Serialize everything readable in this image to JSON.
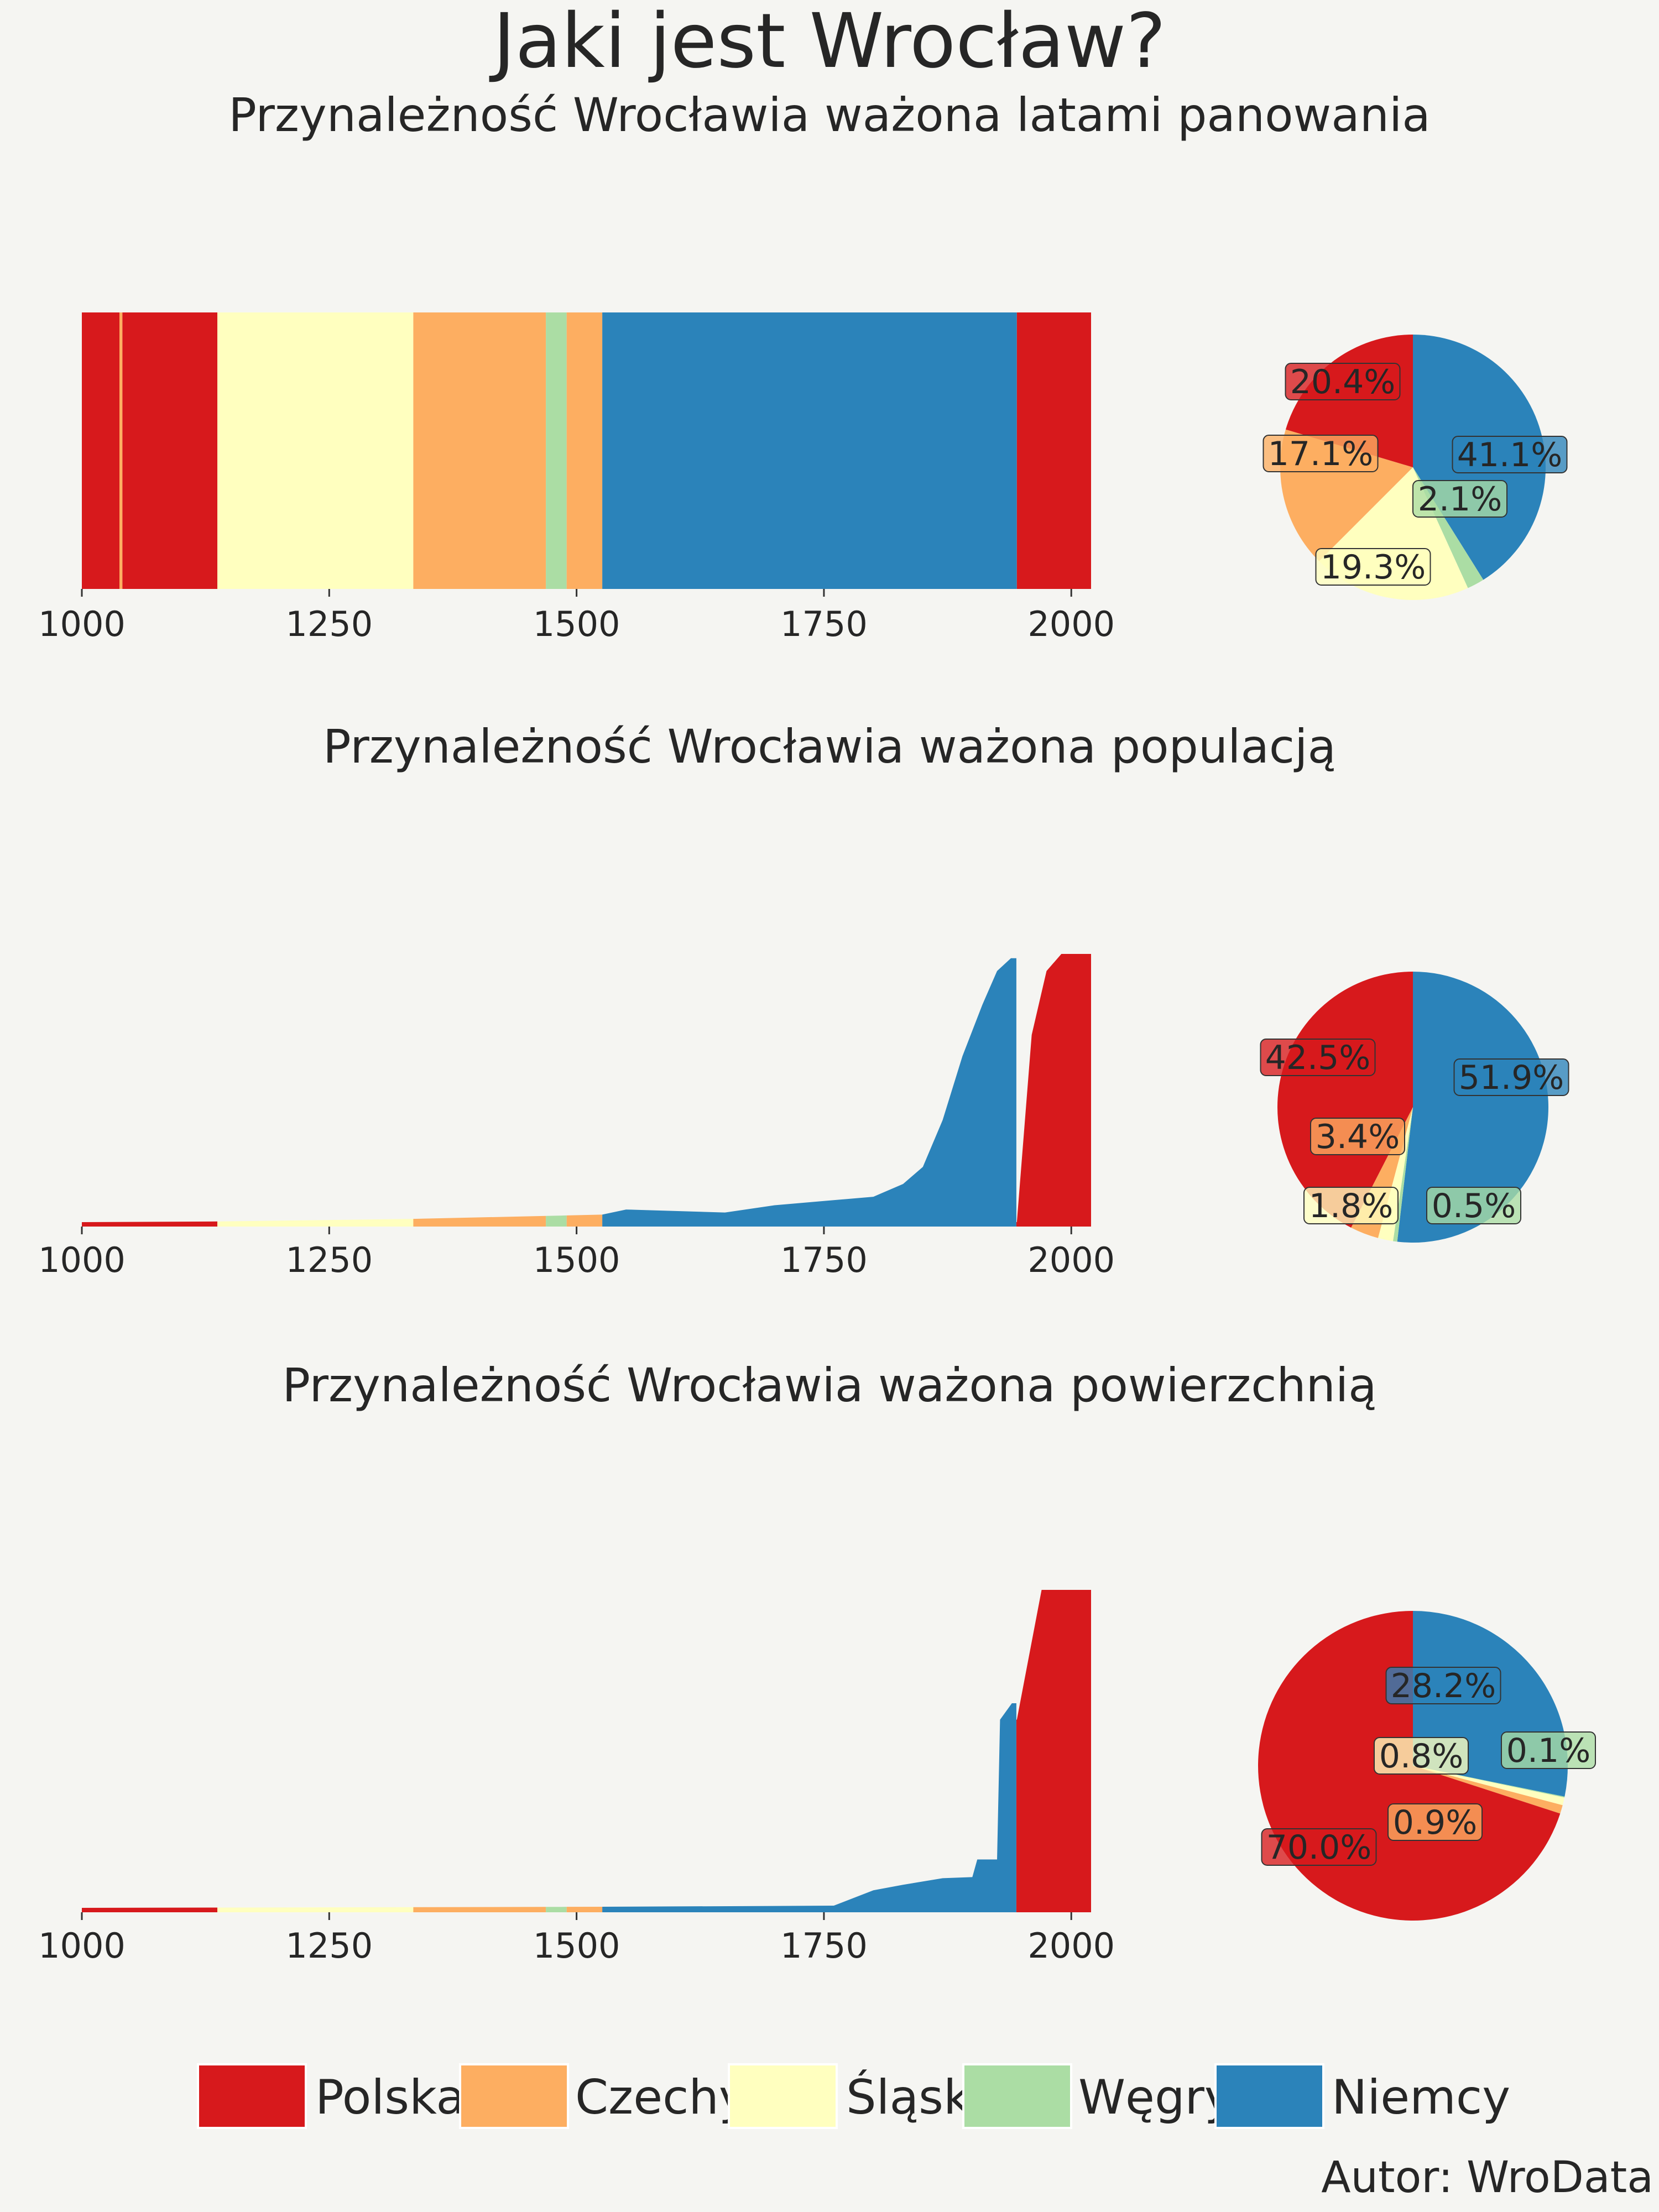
{
  "title": "Jaki jest Wrocław?",
  "author": "Autor: WroData",
  "legend": [
    {
      "key": "PL",
      "label": "Polska",
      "color": "#d7191c"
    },
    {
      "key": "CZ",
      "label": "Czechy",
      "color": "#fdae61"
    },
    {
      "key": "SL",
      "label": "Śląsk",
      "color": "#ffffbf"
    },
    {
      "key": "HU",
      "label": "Węgry",
      "color": "#abdda4"
    },
    {
      "key": "DE",
      "label": "Niemcy",
      "color": "#2b83ba"
    }
  ],
  "chart_data": [
    {
      "type": "area",
      "title": "Przynależność Wrocławia ważona latami panowania",
      "xlim": [
        1000,
        2020
      ],
      "xticks": [
        "1000",
        "1250",
        "1500",
        "1750",
        "2000"
      ],
      "segments": [
        {
          "state": "PL",
          "from": 1000,
          "to": 1038
        },
        {
          "state": "CZ",
          "from": 1038,
          "to": 1041
        },
        {
          "state": "PL",
          "from": 1041,
          "to": 1137
        },
        {
          "state": "SL",
          "from": 1137,
          "to": 1335
        },
        {
          "state": "CZ",
          "from": 1335,
          "to": 1469
        },
        {
          "state": "HU",
          "from": 1469,
          "to": 1490
        },
        {
          "state": "CZ",
          "from": 1490,
          "to": 1526
        },
        {
          "state": "DE",
          "from": 1526,
          "to": 1945
        },
        {
          "state": "PL",
          "from": 1945,
          "to": 2020
        }
      ],
      "pie": [
        {
          "state": "DE",
          "label": "41.1%",
          "value": 41.1
        },
        {
          "state": "HU",
          "label": "2.1%",
          "value": 2.1
        },
        {
          "state": "SL",
          "label": "19.3%",
          "value": 19.3
        },
        {
          "state": "CZ",
          "label": "17.1%",
          "value": 17.1
        },
        {
          "state": "PL",
          "label": "20.4%",
          "value": 20.4
        }
      ]
    },
    {
      "type": "area",
      "title": "Przynależność Wrocławia ważona populacją",
      "xlim": [
        1000,
        2020
      ],
      "xticks": [
        "1000",
        "1250",
        "1500",
        "1750",
        "2000"
      ],
      "ylim": [
        0,
        640000
      ],
      "points": [
        {
          "x": 1000,
          "y": 10000
        },
        {
          "x": 1137,
          "y": 12000
        },
        {
          "x": 1335,
          "y": 18000
        },
        {
          "x": 1469,
          "y": 25000
        },
        {
          "x": 1526,
          "y": 28000
        },
        {
          "x": 1550,
          "y": 40000
        },
        {
          "x": 1650,
          "y": 33000
        },
        {
          "x": 1700,
          "y": 50000
        },
        {
          "x": 1750,
          "y": 60000
        },
        {
          "x": 1800,
          "y": 70000
        },
        {
          "x": 1830,
          "y": 100000
        },
        {
          "x": 1850,
          "y": 140000
        },
        {
          "x": 1870,
          "y": 250000
        },
        {
          "x": 1890,
          "y": 400000
        },
        {
          "x": 1910,
          "y": 520000
        },
        {
          "x": 1925,
          "y": 600000
        },
        {
          "x": 1939,
          "y": 630000
        },
        {
          "x": 1945,
          "y": 10000
        },
        {
          "x": 1960,
          "y": 450000
        },
        {
          "x": 1975,
          "y": 600000
        },
        {
          "x": 1990,
          "y": 640000
        },
        {
          "x": 2020,
          "y": 640000
        }
      ],
      "pie": [
        {
          "state": "DE",
          "label": "51.9%",
          "value": 51.9
        },
        {
          "state": "HU",
          "label": "0.5%",
          "value": 0.5
        },
        {
          "state": "SL",
          "label": "1.8%",
          "value": 1.8
        },
        {
          "state": "CZ",
          "label": "3.4%",
          "value": 3.4
        },
        {
          "state": "PL",
          "label": "42.5%",
          "value": 42.5
        }
      ]
    },
    {
      "type": "area",
      "title": "Przynależność Wrocławia ważona powierzchnią",
      "xlim": [
        1000,
        2020
      ],
      "xticks": [
        "1000",
        "1250",
        "1500",
        "1750",
        "2000"
      ],
      "ylim": [
        0,
        293
      ],
      "points": [
        {
          "x": 1000,
          "y": 4
        },
        {
          "x": 1526,
          "y": 5
        },
        {
          "x": 1760,
          "y": 6
        },
        {
          "x": 1800,
          "y": 20
        },
        {
          "x": 1830,
          "y": 25
        },
        {
          "x": 1870,
          "y": 31
        },
        {
          "x": 1900,
          "y": 32
        },
        {
          "x": 1905,
          "y": 48
        },
        {
          "x": 1925,
          "y": 48
        },
        {
          "x": 1928,
          "y": 175
        },
        {
          "x": 1940,
          "y": 190
        },
        {
          "x": 1945,
          "y": 175
        },
        {
          "x": 1970,
          "y": 293
        },
        {
          "x": 2020,
          "y": 293
        }
      ],
      "pie": [
        {
          "state": "DE",
          "label": "28.2%",
          "value": 28.2
        },
        {
          "state": "HU",
          "label": "0.1%",
          "value": 0.1
        },
        {
          "state": "SL",
          "label": "0.8%",
          "value": 0.8
        },
        {
          "state": "CZ",
          "label": "0.9%",
          "value": 0.9
        },
        {
          "state": "PL",
          "label": "70.0%",
          "value": 70.0
        }
      ]
    }
  ]
}
